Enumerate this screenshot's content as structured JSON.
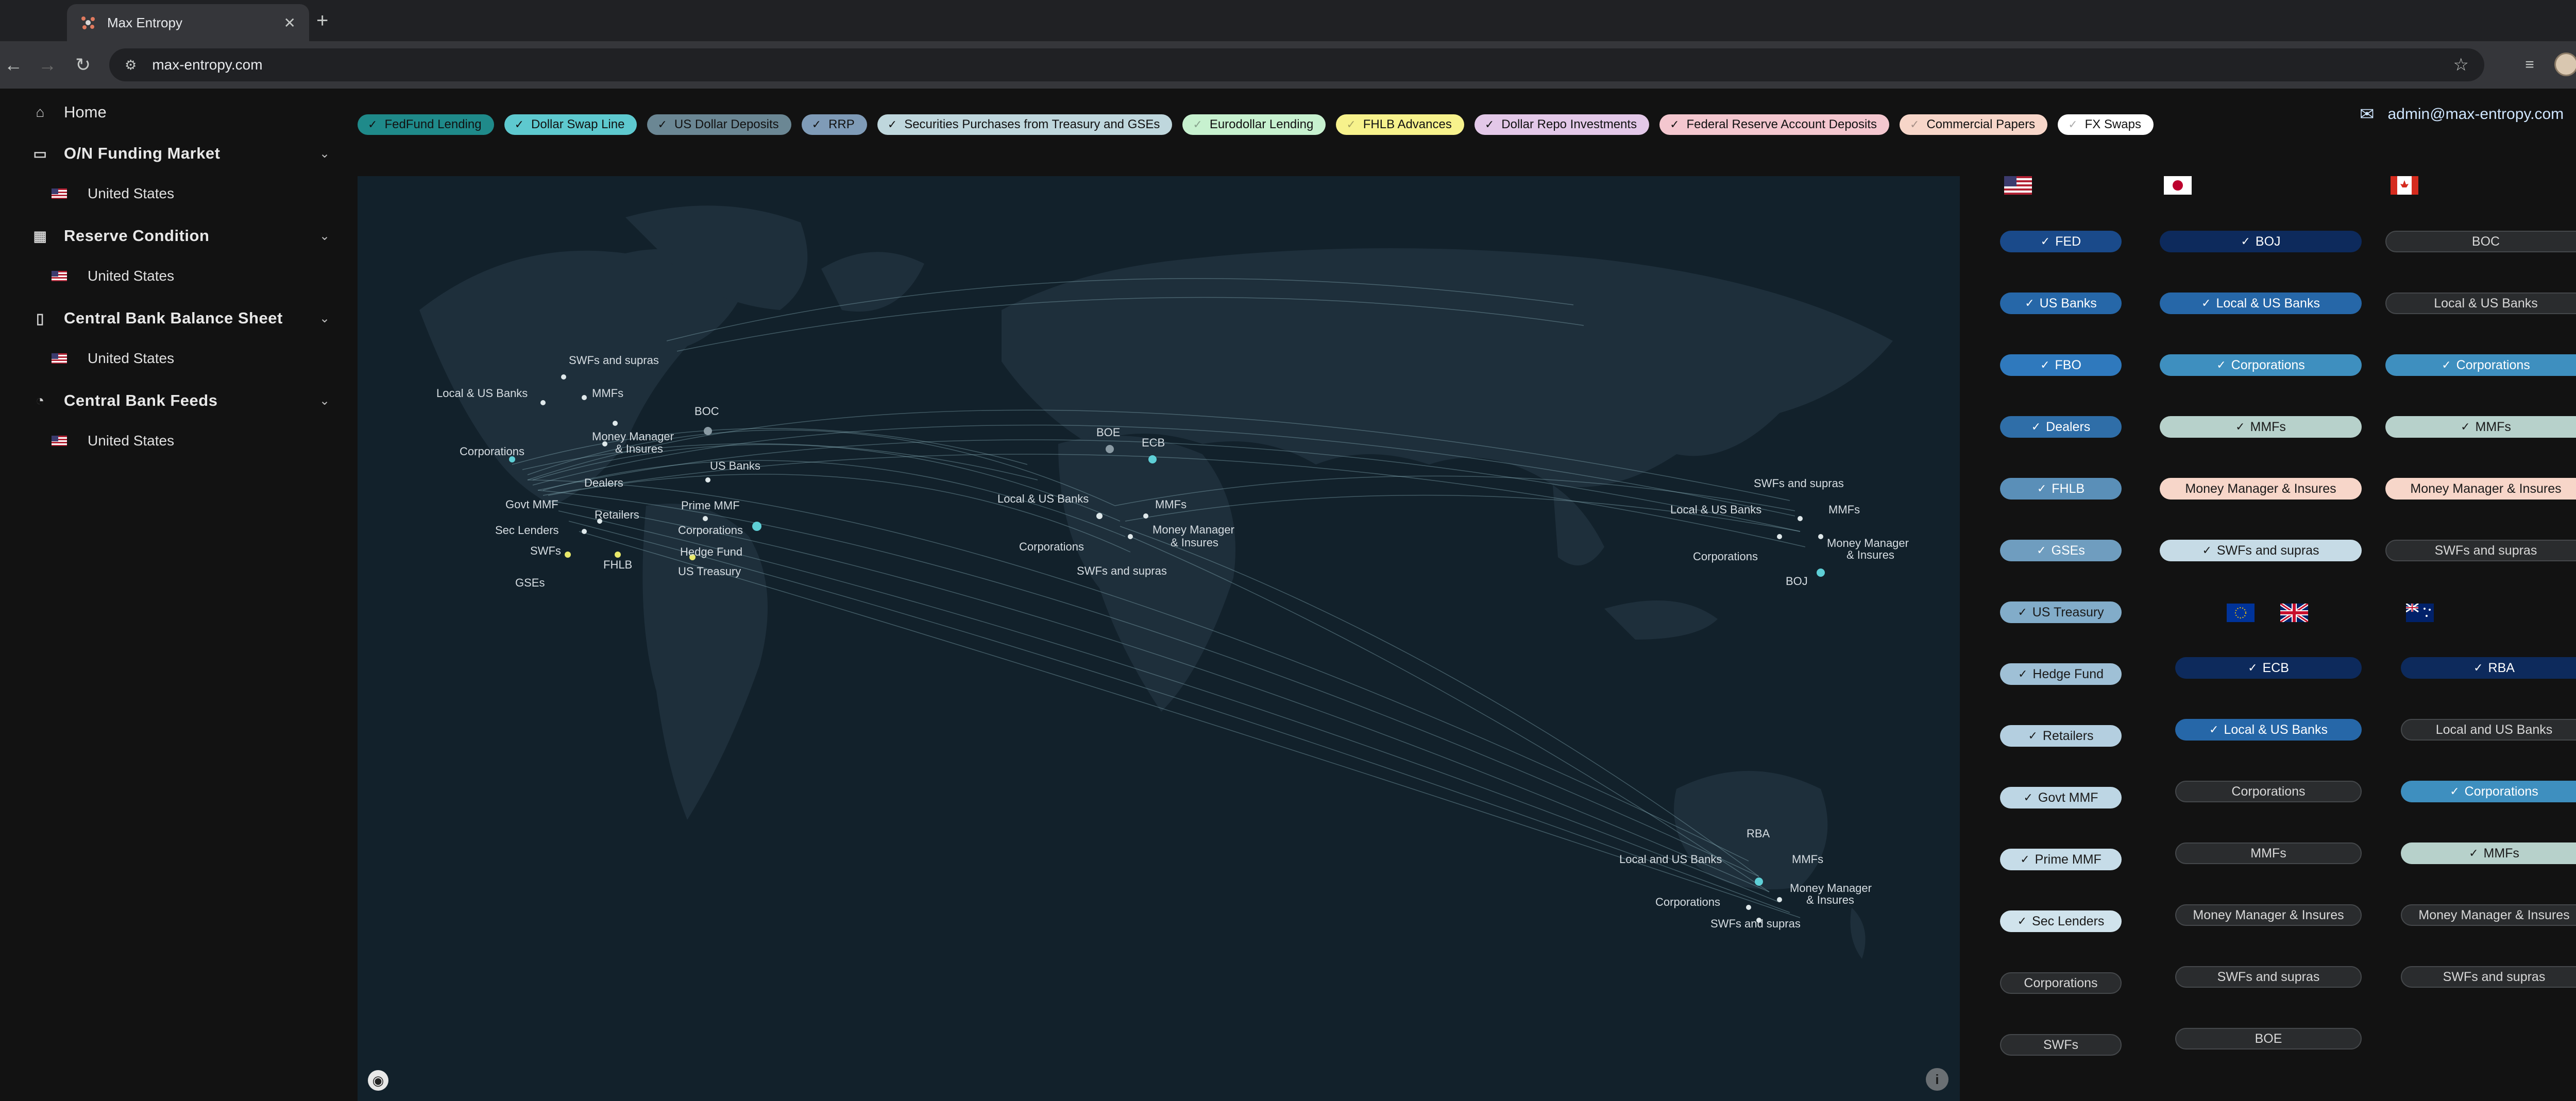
{
  "browser": {
    "tab_title": "Max Entropy",
    "url": "max-entropy.com"
  },
  "user": {
    "email": "admin@max-entropy.com"
  },
  "sidebar": {
    "home": "Home",
    "sections": [
      {
        "label": "O/N Funding Market",
        "sub": "United States"
      },
      {
        "label": "Reserve Condition",
        "sub": "United States"
      },
      {
        "label": "Central Bank Balance Sheet",
        "sub": "United States"
      },
      {
        "label": "Central Bank Feeds",
        "sub": "United States"
      }
    ]
  },
  "chips": [
    {
      "label": "FedFund Lending",
      "bg": "#1f8a8a",
      "checked": true
    },
    {
      "label": "Dollar Swap Line",
      "bg": "#5ec9cf",
      "checked": true
    },
    {
      "label": "US Dollar Deposits",
      "bg": "#6b8794",
      "checked": true
    },
    {
      "label": "RRP",
      "bg": "#7f9bb7",
      "checked": true
    },
    {
      "label": "Securities Purchases from Treasury and GSEs",
      "bg": "#bfd7dd",
      "checked": true
    },
    {
      "label": "Eurodollar Lending",
      "bg": "#c7f1cf",
      "checked": false
    },
    {
      "label": "FHLB Advances",
      "bg": "#f7f28c",
      "checked": false
    },
    {
      "label": "Dollar Repo Investments",
      "bg": "#e3c8e8",
      "checked": true
    },
    {
      "label": "Federal Reserve Account Deposits",
      "bg": "#f4c7cf",
      "checked": true
    },
    {
      "label": "Commercial Papers",
      "bg": "#f7d6c9",
      "checked": false
    },
    {
      "label": "FX Swaps",
      "bg": "#ffffff",
      "checked": false
    }
  ],
  "map": {
    "labels": [
      {
        "t": "SWFs and supras"
      },
      {
        "t": "Local & US Banks"
      },
      {
        "t": "MMFs"
      },
      {
        "t": "BOC"
      },
      {
        "t": "Corporations"
      },
      {
        "t": "Money Manager"
      },
      {
        "t": "& Insures"
      },
      {
        "t": "US Banks"
      },
      {
        "t": "Dealers"
      },
      {
        "t": "Govt MMF"
      },
      {
        "t": "Prime MMF"
      },
      {
        "t": "Retailers"
      },
      {
        "t": "Sec Lenders"
      },
      {
        "t": "Corporations"
      },
      {
        "t": "SWFs"
      },
      {
        "t": "Hedge Fund"
      },
      {
        "t": "FHLB"
      },
      {
        "t": "US Treasury"
      },
      {
        "t": "GSEs"
      },
      {
        "t": "BOE"
      },
      {
        "t": "ECB"
      },
      {
        "t": "Local & US Banks"
      },
      {
        "t": "MMFs"
      },
      {
        "t": "Corporations"
      },
      {
        "t": "Money Manager"
      },
      {
        "t": "& Insures"
      },
      {
        "t": "SWFs and supras"
      },
      {
        "t": "SWFs and supras"
      },
      {
        "t": "Local & US Banks"
      },
      {
        "t": "MMFs"
      },
      {
        "t": "Money Manager"
      },
      {
        "t": "& Insures"
      },
      {
        "t": "Corporations"
      },
      {
        "t": "BOJ"
      },
      {
        "t": "RBA"
      },
      {
        "t": "Local and US Banks"
      },
      {
        "t": "MMFs"
      },
      {
        "t": "Money Manager"
      },
      {
        "t": "& Insures"
      },
      {
        "t": "Corporations"
      },
      {
        "t": "SWFs and supras"
      }
    ]
  },
  "panel": {
    "us": {
      "flag": "us-flag",
      "items": [
        {
          "label": "FED",
          "bg": "#1a4a8a",
          "checked": true
        },
        {
          "label": "US Banks",
          "bg": "#2667a8",
          "checked": true
        },
        {
          "label": "FBO",
          "bg": "#2f79bd",
          "checked": true
        },
        {
          "label": "Dealers",
          "bg": "#2f6ea8",
          "checked": true
        },
        {
          "label": "FHLB",
          "bg": "#5a8fb8",
          "checked": true
        },
        {
          "label": "GSEs",
          "bg": "#6f9dbf",
          "checked": true
        },
        {
          "label": "US Treasury",
          "bg": "#82acc9",
          "checked": true
        },
        {
          "label": "Hedge Fund",
          "bg": "#9fc0d6",
          "checked": true
        },
        {
          "label": "Retailers",
          "bg": "#b4cfe0",
          "checked": true
        },
        {
          "label": "Govt MMF",
          "bg": "#bdd6e4",
          "checked": true
        },
        {
          "label": "Prime MMF",
          "bg": "#c6dce8",
          "checked": true
        },
        {
          "label": "Sec Lenders",
          "bg": "#d0e3ec",
          "checked": true
        },
        {
          "label": "Corporations",
          "bg": "#2a2c2e",
          "checked": false
        },
        {
          "label": "SWFs",
          "bg": "#2a2c2e",
          "checked": false
        }
      ]
    },
    "jp": {
      "flag": "japan-flag",
      "items": [
        {
          "label": "BOJ",
          "bg": "#0d2a5c",
          "checked": true
        },
        {
          "label": "Local & US Banks",
          "bg": "#2667a8",
          "checked": true
        },
        {
          "label": "Corporations",
          "bg": "#3e8fbf",
          "checked": true
        },
        {
          "label": "MMFs",
          "bg": "#b7d1cb",
          "checked": true
        },
        {
          "label": "Money Manager & Insures",
          "bg": "#f7d6c9",
          "checked": false
        },
        {
          "label": "SWFs and supras",
          "bg": "#c6dbe6",
          "checked": true
        }
      ]
    },
    "ca": {
      "flag": "canada-flag",
      "items": [
        {
          "label": "BOC",
          "bg": "#2a2c2e",
          "checked": false
        },
        {
          "label": "Local & US Banks",
          "bg": "#2a2c2e",
          "checked": false
        },
        {
          "label": "Corporations",
          "bg": "#3e8fbf",
          "checked": true
        },
        {
          "label": "MMFs",
          "bg": "#b7d1cb",
          "checked": true
        },
        {
          "label": "Money Manager & Insures",
          "bg": "#f7d6c9",
          "checked": false
        },
        {
          "label": "SWFs and supras",
          "bg": "#2a2c2e",
          "checked": false
        }
      ]
    },
    "eu": {
      "flags": [
        "eu-flag",
        "uk-flag"
      ],
      "items": [
        {
          "label": "ECB",
          "bg": "#0d2a5c",
          "checked": true
        },
        {
          "label": "Local & US Banks",
          "bg": "#2667a8",
          "checked": true
        },
        {
          "label": "Corporations",
          "bg": "#2a2c2e",
          "checked": false
        },
        {
          "label": "MMFs",
          "bg": "#2a2c2e",
          "checked": false
        },
        {
          "label": "Money Manager & Insures",
          "bg": "#2a2c2e",
          "checked": false
        },
        {
          "label": "SWFs and supras",
          "bg": "#2a2c2e",
          "checked": false
        },
        {
          "label": "BOE",
          "bg": "#2a2c2e",
          "checked": false
        }
      ]
    },
    "au": {
      "flag": "australia-flag",
      "items": [
        {
          "label": "RBA",
          "bg": "#0d2a5c",
          "checked": true
        },
        {
          "label": "Local and US Banks",
          "bg": "#2a2c2e",
          "checked": false
        },
        {
          "label": "Corporations",
          "bg": "#3e8fbf",
          "checked": true
        },
        {
          "label": "MMFs",
          "bg": "#b7d1cb",
          "checked": true
        },
        {
          "label": "Money Manager & Insures",
          "bg": "#2a2c2e",
          "checked": false
        },
        {
          "label": "SWFs and supras",
          "bg": "#2a2c2e",
          "checked": false
        }
      ]
    }
  }
}
